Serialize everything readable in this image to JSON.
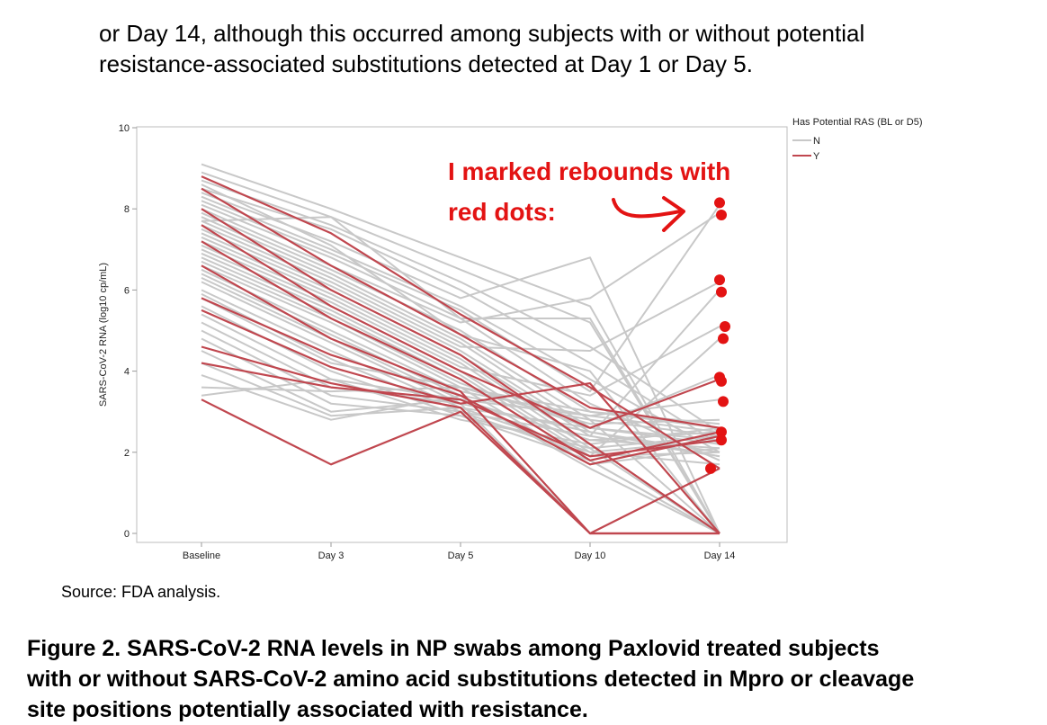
{
  "intro_lines": [
    "or Day 14, although this occurred among subjects with or without potential",
    "resistance-associated substitutions detected at Day 1 or Day 5."
  ],
  "source": "Source: FDA analysis.",
  "caption_lines": [
    "Figure 2. SARS-CoV-2 RNA levels in NP swabs among Paxlovid treated subjects",
    "with or without SARS-CoV-2 amino acid substitutions detected in Mpro or cleavage",
    "site positions potentially associated with resistance."
  ],
  "annotation": {
    "lines": [
      "I marked rebounds with",
      "red dots:"
    ],
    "color": "#e31313"
  },
  "chart_data": {
    "type": "line",
    "ylabel": "SARS-CoV-2 RNA (log10 cp/mL)",
    "ylim": [
      0,
      10
    ],
    "yticks": [
      0,
      2,
      4,
      6,
      8,
      10
    ],
    "categories": [
      "Baseline",
      "Day 3",
      "Day 5",
      "Day 10",
      "Day 14"
    ],
    "legend": {
      "title": "Has Potential RAS (BL or D5)",
      "position": "top-right",
      "entries": [
        {
          "label": "N",
          "color": "#c8c8c8"
        },
        {
          "label": "Y",
          "color": "#c0474f"
        }
      ]
    },
    "series": [
      {
        "group": "N",
        "values": [
          9.1,
          8.0,
          6.8,
          5.6,
          0.0
        ]
      },
      {
        "group": "N",
        "values": [
          8.9,
          7.8,
          6.5,
          5.2,
          0.0
        ]
      },
      {
        "group": "N",
        "values": [
          8.7,
          7.6,
          6.2,
          4.6,
          2.5
        ]
      },
      {
        "group": "N",
        "values": [
          8.5,
          7.5,
          6.0,
          4.2,
          2.2
        ]
      },
      {
        "group": "N",
        "values": [
          8.4,
          7.2,
          5.8,
          6.8,
          0.0
        ]
      },
      {
        "group": "N",
        "values": [
          8.3,
          7.0,
          5.6,
          3.8,
          2.0
        ]
      },
      {
        "group": "N",
        "values": [
          8.2,
          6.9,
          5.5,
          3.5,
          8.1
        ]
      },
      {
        "group": "N",
        "values": [
          8.1,
          6.8,
          5.3,
          3.2,
          1.8
        ]
      },
      {
        "group": "N",
        "values": [
          8.0,
          6.6,
          5.2,
          5.8,
          7.9
        ]
      },
      {
        "group": "N",
        "values": [
          7.9,
          6.5,
          5.0,
          3.0,
          2.6
        ]
      },
      {
        "group": "N",
        "values": [
          7.8,
          6.4,
          4.8,
          2.8,
          0.0
        ]
      },
      {
        "group": "N",
        "values": [
          7.7,
          6.3,
          4.7,
          2.6,
          2.3
        ]
      },
      {
        "group": "N",
        "values": [
          7.6,
          6.2,
          4.6,
          4.5,
          6.2
        ]
      },
      {
        "group": "N",
        "values": [
          7.5,
          6.1,
          4.5,
          2.5,
          1.9
        ]
      },
      {
        "group": "N",
        "values": [
          7.4,
          6.0,
          4.4,
          2.4,
          6.0
        ]
      },
      {
        "group": "N",
        "values": [
          7.3,
          5.9,
          4.3,
          2.2,
          0.0
        ]
      },
      {
        "group": "N",
        "values": [
          7.2,
          5.8,
          4.2,
          2.1,
          2.4
        ]
      },
      {
        "group": "N",
        "values": [
          7.1,
          5.7,
          4.1,
          3.4,
          5.1
        ]
      },
      {
        "group": "N",
        "values": [
          7.0,
          5.6,
          4.0,
          2.0,
          1.7
        ]
      },
      {
        "group": "N",
        "values": [
          6.9,
          5.5,
          3.9,
          1.9,
          4.8
        ]
      },
      {
        "group": "N",
        "values": [
          6.8,
          5.4,
          3.8,
          1.8,
          0.0
        ]
      },
      {
        "group": "N",
        "values": [
          6.7,
          5.3,
          3.7,
          2.6,
          3.9
        ]
      },
      {
        "group": "N",
        "values": [
          6.6,
          5.2,
          3.6,
          1.7,
          2.1
        ]
      },
      {
        "group": "N",
        "values": [
          6.5,
          5.0,
          3.5,
          2.9,
          3.3
        ]
      },
      {
        "group": "N",
        "values": [
          6.4,
          4.9,
          3.4,
          1.6,
          0.0
        ]
      },
      {
        "group": "N",
        "values": [
          6.3,
          4.8,
          3.3,
          2.3,
          2.5
        ]
      },
      {
        "group": "N",
        "values": [
          6.2,
          4.7,
          3.2,
          0.0,
          0.0
        ]
      },
      {
        "group": "N",
        "values": [
          6.0,
          4.5,
          3.1,
          2.0,
          2.3
        ]
      },
      {
        "group": "N",
        "values": [
          5.9,
          4.3,
          3.0,
          1.9,
          2.0
        ]
      },
      {
        "group": "N",
        "values": [
          5.8,
          4.2,
          3.6,
          2.7,
          2.8
        ]
      },
      {
        "group": "N",
        "values": [
          5.6,
          4.0,
          2.9,
          1.8,
          0.0
        ]
      },
      {
        "group": "N",
        "values": [
          5.4,
          3.8,
          2.8,
          2.2,
          2.6
        ]
      },
      {
        "group": "N",
        "values": [
          5.2,
          3.6,
          3.2,
          2.5,
          2.0
        ]
      },
      {
        "group": "N",
        "values": [
          5.0,
          3.4,
          3.0,
          2.4,
          1.9
        ]
      },
      {
        "group": "N",
        "values": [
          4.8,
          3.2,
          2.9,
          2.1,
          0.0
        ]
      },
      {
        "group": "N",
        "values": [
          4.5,
          3.0,
          3.3,
          2.9,
          2.5
        ]
      },
      {
        "group": "N",
        "values": [
          4.2,
          2.9,
          3.1,
          2.6,
          2.2
        ]
      },
      {
        "group": "N",
        "values": [
          3.9,
          2.8,
          3.4,
          2.8,
          2.4
        ]
      },
      {
        "group": "N",
        "values": [
          3.6,
          3.5,
          3.6,
          3.0,
          2.7
        ]
      },
      {
        "group": "N",
        "values": [
          3.4,
          3.8,
          3.3,
          2.3,
          2.1
        ]
      },
      {
        "group": "N",
        "values": [
          7.7,
          7.8,
          5.3,
          5.3,
          0.0
        ]
      },
      {
        "group": "N",
        "values": [
          8.6,
          7.1,
          4.9,
          4.0,
          0.0
        ]
      },
      {
        "group": "Y",
        "values": [
          8.8,
          7.4,
          5.4,
          3.6,
          1.6
        ]
      },
      {
        "group": "Y",
        "values": [
          8.5,
          6.6,
          4.9,
          3.1,
          2.6
        ]
      },
      {
        "group": "Y",
        "values": [
          8.0,
          6.0,
          4.4,
          2.2,
          0.0
        ]
      },
      {
        "group": "Y",
        "values": [
          7.6,
          5.6,
          4.0,
          2.6,
          3.8
        ]
      },
      {
        "group": "Y",
        "values": [
          7.2,
          5.3,
          3.8,
          1.8,
          2.5
        ]
      },
      {
        "group": "Y",
        "values": [
          6.6,
          4.8,
          3.5,
          0.0,
          0.0
        ]
      },
      {
        "group": "Y",
        "values": [
          5.8,
          4.4,
          3.4,
          1.7,
          2.4
        ]
      },
      {
        "group": "Y",
        "values": [
          5.5,
          4.1,
          3.2,
          3.7,
          0.0
        ]
      },
      {
        "group": "Y",
        "values": [
          4.6,
          3.7,
          3.1,
          0.0,
          0.0
        ]
      },
      {
        "group": "Y",
        "values": [
          4.2,
          3.6,
          3.3,
          1.9,
          2.3
        ]
      },
      {
        "group": "Y",
        "values": [
          3.3,
          1.7,
          3.0,
          0.0,
          1.6
        ]
      }
    ],
    "rebound_markers": {
      "category": "Day 14",
      "values": [
        8.15,
        7.85,
        6.25,
        5.95,
        5.1,
        4.8,
        3.85,
        3.75,
        3.25,
        2.5,
        2.3,
        1.6
      ]
    }
  }
}
